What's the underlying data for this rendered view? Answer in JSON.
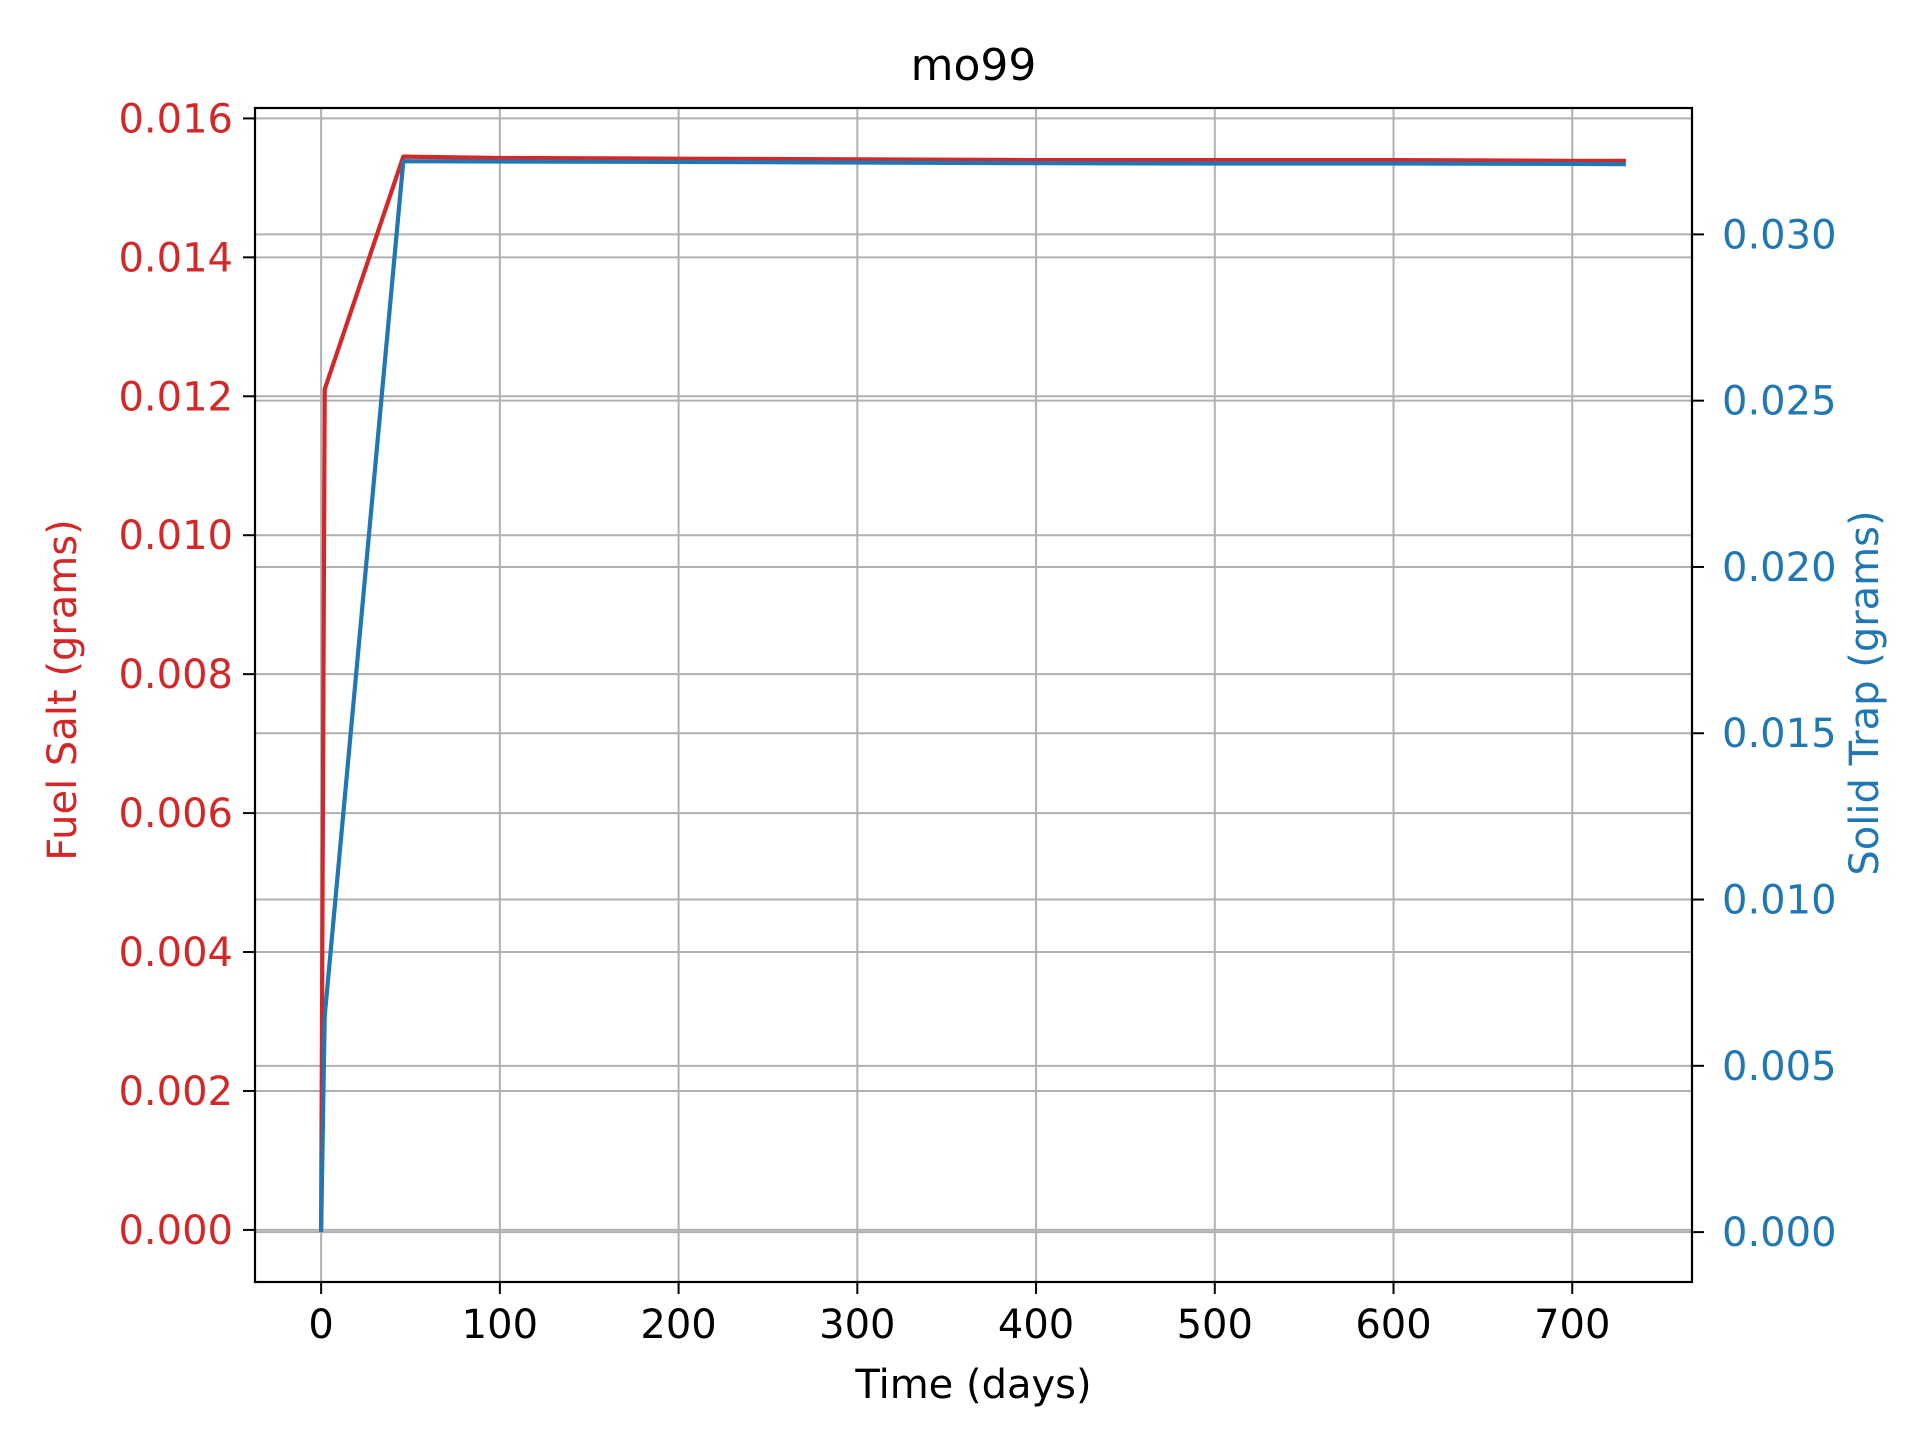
{
  "chart_data": {
    "type": "line",
    "title": "mo99",
    "xlabel": "Time (days)",
    "ylabel_left": "Fuel Salt (grams)",
    "ylabel_right": "Solid Trap (grams)",
    "xlim": [
      -37,
      767
    ],
    "ylim_left": [
      -0.00075,
      0.01615
    ],
    "ylim_right": [
      -0.0015,
      0.0338
    ],
    "x_ticks": [
      0,
      100,
      200,
      300,
      400,
      500,
      600,
      700
    ],
    "x_tick_labels": [
      "0",
      "100",
      "200",
      "300",
      "400",
      "500",
      "600",
      "700"
    ],
    "y_left_ticks": [
      0.0,
      0.002,
      0.004,
      0.006,
      0.008,
      0.01,
      0.012,
      0.014,
      0.016
    ],
    "y_left_tick_labels": [
      "0.000",
      "0.002",
      "0.004",
      "0.006",
      "0.008",
      "0.010",
      "0.012",
      "0.014",
      "0.016"
    ],
    "y_right_ticks": [
      0.0,
      0.005,
      0.01,
      0.015,
      0.02,
      0.025,
      0.03
    ],
    "y_right_tick_labels": [
      "0.000",
      "0.005",
      "0.010",
      "0.015",
      "0.020",
      "0.025",
      "0.030"
    ],
    "grid": true,
    "series": [
      {
        "axis": "left",
        "color": "#d62728",
        "x": [
          0,
          2,
          46,
          100,
          200,
          300,
          400,
          500,
          600,
          700,
          730
        ],
        "y": [
          0.0,
          0.0121,
          0.01545,
          0.01543,
          0.01542,
          0.01541,
          0.0154,
          0.0154,
          0.0154,
          0.01539,
          0.01539
        ]
      },
      {
        "axis": "right",
        "color": "#1f77b4",
        "x": [
          0,
          2,
          46,
          100,
          200,
          300,
          400,
          500,
          600,
          700,
          730
        ],
        "y": [
          0.0,
          0.0065,
          0.0322,
          0.03219,
          0.03218,
          0.03216,
          0.03214,
          0.03213,
          0.03213,
          0.03212,
          0.03211
        ]
      }
    ]
  }
}
